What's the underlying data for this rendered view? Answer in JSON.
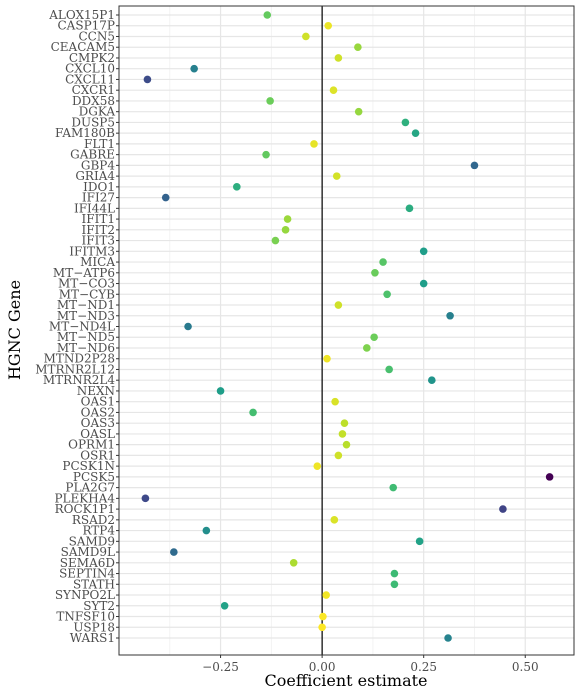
{
  "chart_data": {
    "type": "scatter",
    "xlabel": "Coefficient estimate",
    "ylabel": "HGNC Gene",
    "xlim": [
      -0.5,
      0.62
    ],
    "x_ticks": [
      -0.25,
      0.0,
      0.25,
      0.5
    ],
    "x_tick_labels": [
      "−0.25",
      "0.00",
      "0.25",
      "0.50"
    ],
    "reference_line_x": 0,
    "grid": true,
    "legend": "none",
    "color_scale": "viridis",
    "categories": [
      "ALOX15P1",
      "CASP17P",
      "CCN5",
      "CEACAM5",
      "CMPK2",
      "CXCL10",
      "CXCL11",
      "CXCR1",
      "DDX58",
      "DGKA",
      "DUSP5",
      "FAM180B",
      "FLT1",
      "GABRE",
      "GBP4",
      "GRIA4",
      "IDO1",
      "IFI27",
      "IFI44L",
      "IFIT1",
      "IFIT2",
      "IFIT3",
      "IFITM3",
      "MICA",
      "MT−ATP6",
      "MT−CO3",
      "MT−CYB",
      "MT−ND1",
      "MT−ND3",
      "MT−ND4L",
      "MT−ND5",
      "MT−ND6",
      "MTND2P28",
      "MTRNR2L12",
      "MTRNR2L4",
      "NEXN",
      "OAS1",
      "OAS2",
      "OAS3",
      "OASL",
      "OPRM1",
      "OSR1",
      "PCSK1N",
      "PCSK5",
      "PLA2G7",
      "PLEKHA4",
      "ROCK1P1",
      "RSAD2",
      "RTP4",
      "SAMD9",
      "SAMD9L",
      "SEMA6D",
      "SEPTIN4",
      "STATH",
      "SYNPO2L",
      "SYT2",
      "TNFSF10",
      "USP18",
      "WARS1"
    ],
    "values": [
      -0.135,
      0.015,
      -0.04,
      0.088,
      0.04,
      -0.315,
      -0.43,
      0.028,
      -0.128,
      0.09,
      0.205,
      0.23,
      -0.02,
      -0.138,
      0.375,
      0.036,
      -0.21,
      -0.385,
      0.215,
      -0.085,
      -0.09,
      -0.115,
      0.25,
      0.15,
      0.13,
      0.25,
      0.16,
      0.04,
      0.315,
      -0.33,
      0.128,
      0.11,
      0.012,
      0.165,
      0.27,
      -0.25,
      0.032,
      -0.17,
      0.055,
      0.05,
      0.06,
      0.04,
      -0.012,
      0.56,
      0.175,
      -0.435,
      0.445,
      0.03,
      -0.285,
      0.24,
      -0.365,
      -0.07,
      0.178,
      0.178,
      0.01,
      -0.24,
      0.002,
      0.0,
      0.31
    ]
  }
}
